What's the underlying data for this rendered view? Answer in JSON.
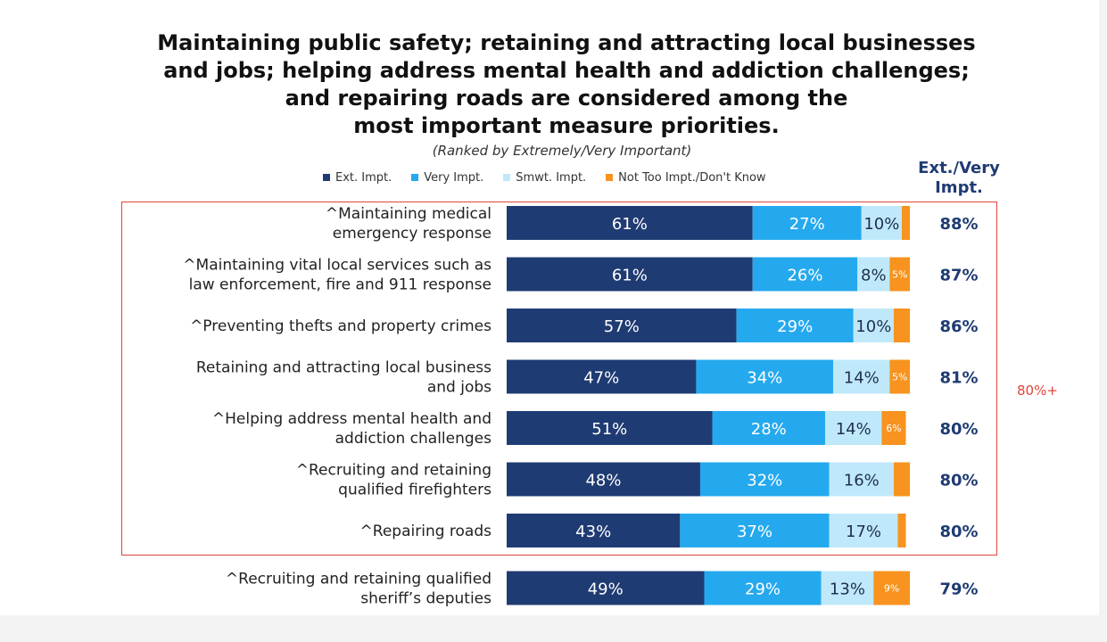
{
  "title_lines": [
    "Maintaining public safety; retaining and attracting local businesses",
    "and jobs; helping address mental health and addiction challenges;",
    "and repairing roads are considered among the",
    "most important measure priorities."
  ],
  "subtitle": "(Ranked by Extremely/Very Important)",
  "side_header": "Ext./Very Impt.",
  "highlight_label": "80%+",
  "colors": {
    "ext": "#1f3b73",
    "very": "#25a9ee",
    "smwt": "#bfe9fb",
    "not": "#f7931e",
    "total": "#1f3b73",
    "highlight": "#e0443b"
  },
  "chart_data": {
    "type": "bar",
    "orientation": "horizontal",
    "stacked": true,
    "xlim": [
      0,
      100
    ],
    "legend_position": "top",
    "legend": [
      "Ext. Impt.",
      "Very Impt.",
      "Smwt. Impt.",
      "Not Too Impt./Don't Know"
    ],
    "rows": [
      {
        "label_lines": [
          "^Maintaining medical",
          "emergency response"
        ],
        "ext": 61,
        "very": 27,
        "smwt": 10,
        "not": 2,
        "ext_label": "61%",
        "very_label": "27%",
        "smwt_label": "10%",
        "not_label": "",
        "total_label": "88%"
      },
      {
        "label_lines": [
          "^Maintaining vital local services such as",
          "law enforcement, fire and 911 response"
        ],
        "ext": 61,
        "very": 26,
        "smwt": 8,
        "not": 5,
        "ext_label": "61%",
        "very_label": "26%",
        "smwt_label": "8%",
        "not_label": "5%",
        "total_label": "87%"
      },
      {
        "label_lines": [
          "^Preventing thefts and property crimes"
        ],
        "ext": 57,
        "very": 29,
        "smwt": 10,
        "not": 4,
        "ext_label": "57%",
        "very_label": "29%",
        "smwt_label": "10%",
        "not_label": "",
        "total_label": "86%"
      },
      {
        "label_lines": [
          "Retaining and attracting local business",
          "and jobs"
        ],
        "ext": 47,
        "very": 34,
        "smwt": 14,
        "not": 5,
        "ext_label": "47%",
        "very_label": "34%",
        "smwt_label": "14%",
        "not_label": "5%",
        "total_label": "81%"
      },
      {
        "label_lines": [
          "^Helping address mental health and",
          "addiction challenges"
        ],
        "ext": 51,
        "very": 28,
        "smwt": 14,
        "not": 6,
        "ext_label": "51%",
        "very_label": "28%",
        "smwt_label": "14%",
        "not_label": "6%",
        "total_label": "80%"
      },
      {
        "label_lines": [
          "^Recruiting and retaining",
          "qualified firefighters"
        ],
        "ext": 48,
        "very": 32,
        "smwt": 16,
        "not": 4,
        "ext_label": "48%",
        "very_label": "32%",
        "smwt_label": "16%",
        "not_label": "",
        "total_label": "80%"
      },
      {
        "label_lines": [
          "^Repairing roads"
        ],
        "ext": 43,
        "very": 37,
        "smwt": 17,
        "not": 2,
        "ext_label": "43%",
        "very_label": "37%",
        "smwt_label": "17%",
        "not_label": "",
        "total_label": "80%"
      },
      {
        "label_lines": [
          "^Recruiting and retaining qualified",
          "sheriff’s deputies"
        ],
        "ext": 49,
        "very": 29,
        "smwt": 13,
        "not": 9,
        "ext_label": "49%",
        "very_label": "29%",
        "smwt_label": "13%",
        "not_label": "9%",
        "total_label": "79%"
      }
    ]
  }
}
